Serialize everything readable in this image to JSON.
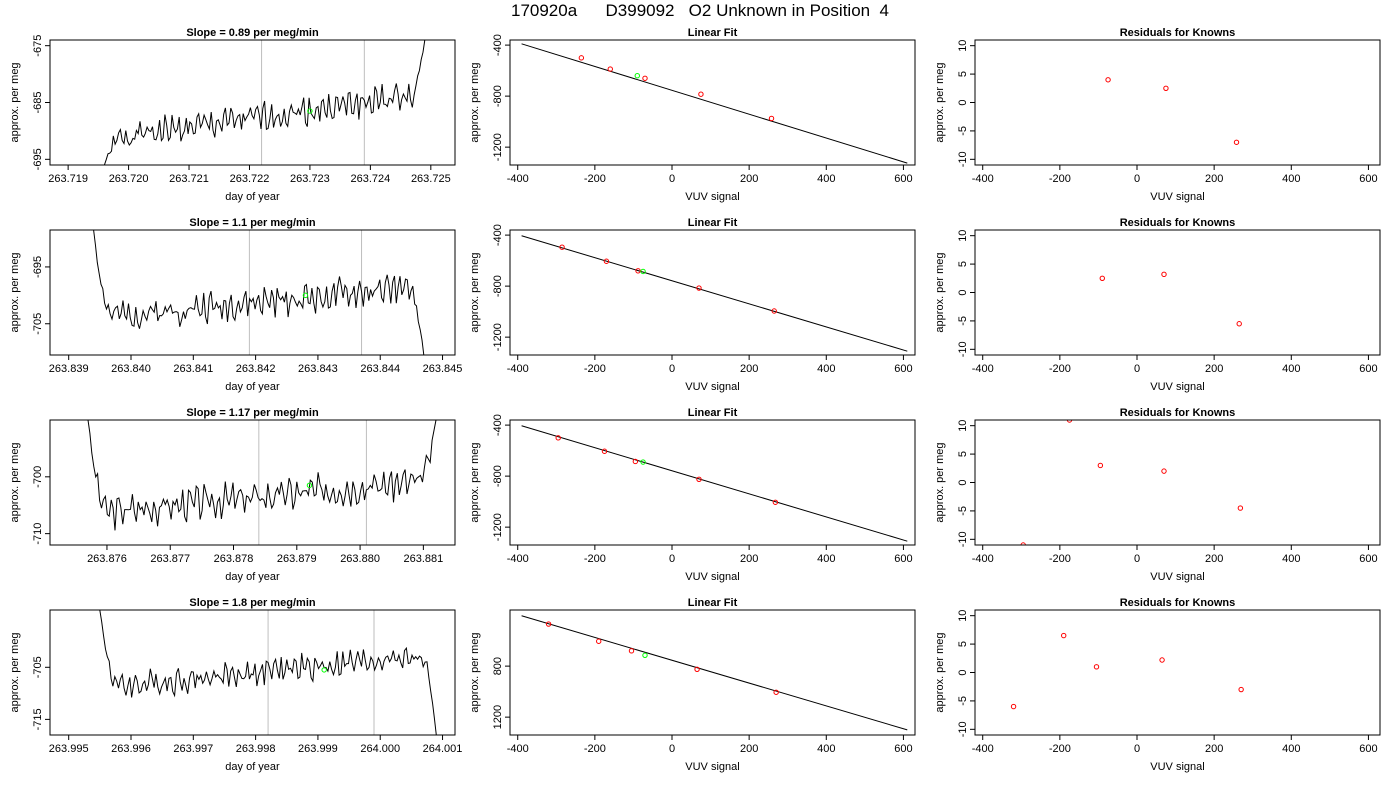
{
  "figure": {
    "title": "170920a      D399092   O2 Unknown in Position  4"
  },
  "colors": {
    "trace": "#000000",
    "frame": "#000000",
    "marker_line": "#bebebe",
    "known_point": "#ff0000",
    "unknown_point": "#00ff00",
    "fit_line": "#000000"
  },
  "chart_data": [
    {
      "type": "line",
      "row": 1,
      "panel": "time-series",
      "title": "Slope =  0.89  per meg/min",
      "xlabel": "day of year",
      "ylabel": "approx. per meg",
      "xlim": [
        263.7187,
        263.7254
      ],
      "ylim": [
        -696,
        -674
      ],
      "x_ticks": [
        "263.719",
        "263.720",
        "263.721",
        "263.722",
        "263.723",
        "263.724",
        "263.725"
      ],
      "y_ticks": [
        "-675",
        "-685",
        "-695"
      ],
      "x_tick_values": [
        263.719,
        263.72,
        263.721,
        263.722,
        263.723,
        263.724,
        263.725
      ],
      "y_tick_values": [
        -675,
        -685,
        -695
      ],
      "vlines": [
        263.7222,
        263.7239
      ],
      "highlight_point": {
        "x": 263.723,
        "y": -686.5
      },
      "trace": {
        "x_start": 263.7196,
        "x_end": 263.7249,
        "base_start": -691.5,
        "base_end": -683.5,
        "amplitude": 2.2,
        "start_y": -696,
        "end_y": -674,
        "seed": 1
      }
    },
    {
      "type": "scatter",
      "row": 1,
      "panel": "linear-fit",
      "title": "Linear Fit",
      "xlabel": "VUV signal",
      "ylabel": "approx. per meg",
      "xlim": [
        -420,
        630
      ],
      "ylim": [
        -1340,
        -360
      ],
      "x_ticks": [
        "-400",
        "-200",
        "0",
        "200",
        "400",
        "600"
      ],
      "x_tick_values": [
        -400,
        -200,
        0,
        200,
        400,
        600
      ],
      "y_ticks": [
        "-400",
        "-800",
        "-1200"
      ],
      "y_tick_values": [
        -400,
        -800,
        -1200
      ],
      "fit_line": {
        "x": [
          -390,
          610
        ],
        "y": [
          -390,
          -1325
        ]
      },
      "knowns": [
        {
          "x": -235,
          "y": -500
        },
        {
          "x": -160,
          "y": -588
        },
        {
          "x": -70,
          "y": -660
        },
        {
          "x": 75,
          "y": -785
        },
        {
          "x": 258,
          "y": -975
        }
      ],
      "unknown": {
        "x": -90,
        "y": -640
      }
    },
    {
      "type": "scatter",
      "row": 1,
      "panel": "residuals",
      "title": "Residuals for Knowns",
      "xlabel": "VUV signal",
      "ylabel": "approx. per meg",
      "xlim": [
        -420,
        630
      ],
      "ylim": [
        -11,
        11
      ],
      "x_ticks": [
        "-400",
        "-200",
        "0",
        "200",
        "400",
        "600"
      ],
      "x_tick_values": [
        -400,
        -200,
        0,
        200,
        400,
        600
      ],
      "y_ticks": [
        "10",
        "5",
        "0",
        "-5",
        "-10"
      ],
      "y_tick_values": [
        10,
        5,
        0,
        -5,
        -10
      ],
      "points": [
        {
          "x": -75,
          "y": 4
        },
        {
          "x": 75,
          "y": 2.5
        },
        {
          "x": 258,
          "y": -7
        }
      ]
    },
    {
      "type": "line",
      "row": 2,
      "panel": "time-series",
      "title": "Slope =  1.1  per meg/min",
      "xlabel": "day of year",
      "ylabel": "approx. per meg",
      "xlim": [
        263.8387,
        263.8452
      ],
      "ylim": [
        -710.5,
        -688.5
      ],
      "x_ticks": [
        "263.839",
        "263.840",
        "263.841",
        "263.842",
        "263.843",
        "263.844",
        "263.845"
      ],
      "y_ticks": [
        "-695",
        "-705"
      ],
      "x_tick_values": [
        263.839,
        263.84,
        263.841,
        263.842,
        263.843,
        263.844,
        263.845
      ],
      "y_tick_values": [
        -695,
        -705
      ],
      "vlines": [
        263.8419,
        263.8437
      ],
      "highlight_point": {
        "x": 263.8428,
        "y": -700
      },
      "trace": {
        "x_start": 263.8394,
        "x_end": 263.8447,
        "base_start": -704,
        "base_end": -698.5,
        "amplitude": 2.3,
        "start_y": -688.5,
        "end_y": -710.5,
        "seed": 2
      }
    },
    {
      "type": "scatter",
      "row": 2,
      "panel": "linear-fit",
      "title": "Linear Fit",
      "xlabel": "VUV signal",
      "ylabel": "approx. per meg",
      "xlim": [
        -420,
        630
      ],
      "ylim": [
        -1340,
        -360
      ],
      "x_ticks": [
        "-400",
        "-200",
        "0",
        "200",
        "400",
        "600"
      ],
      "x_tick_values": [
        -400,
        -200,
        0,
        200,
        400,
        600
      ],
      "y_ticks": [
        "-400",
        "-800",
        "-1200"
      ],
      "y_tick_values": [
        -400,
        -800,
        -1200
      ],
      "fit_line": {
        "x": [
          -390,
          610
        ],
        "y": [
          -405,
          -1310
        ]
      },
      "knowns": [
        {
          "x": -285,
          "y": -495
        },
        {
          "x": -170,
          "y": -605
        },
        {
          "x": -88,
          "y": -680
        },
        {
          "x": 70,
          "y": -815
        },
        {
          "x": 265,
          "y": -995
        }
      ],
      "unknown": {
        "x": -75,
        "y": -685
      }
    },
    {
      "type": "scatter",
      "row": 2,
      "panel": "residuals",
      "title": "Residuals for Knowns",
      "xlabel": "VUV signal",
      "ylabel": "approx. per meg",
      "xlim": [
        -420,
        630
      ],
      "ylim": [
        -11,
        11
      ],
      "x_ticks": [
        "-400",
        "-200",
        "0",
        "200",
        "400",
        "600"
      ],
      "x_tick_values": [
        -400,
        -200,
        0,
        200,
        400,
        600
      ],
      "y_ticks": [
        "10",
        "5",
        "0",
        "-5",
        "-10"
      ],
      "y_tick_values": [
        10,
        5,
        0,
        -5,
        -10
      ],
      "points": [
        {
          "x": -90,
          "y": 2.5
        },
        {
          "x": 70,
          "y": 3.2
        },
        {
          "x": 265,
          "y": -5.5
        }
      ]
    },
    {
      "type": "line",
      "row": 3,
      "panel": "time-series",
      "title": "Slope =  1.17  per meg/min",
      "xlabel": "day of year",
      "ylabel": "approx. per meg",
      "xlim": [
        263.8751,
        263.8815
      ],
      "ylim": [
        -712,
        -690
      ],
      "x_ticks": [
        "263.876",
        "263.877",
        "263.878",
        "263.879",
        "263.880",
        "263.881"
      ],
      "y_ticks": [
        "-700",
        "-710"
      ],
      "x_tick_values": [
        263.876,
        263.877,
        263.878,
        263.879,
        263.88,
        263.881
      ],
      "y_tick_values": [
        -700,
        -710
      ],
      "vlines": [
        263.8784,
        263.8801
      ],
      "highlight_point": {
        "x": 263.8792,
        "y": -701.5
      },
      "trace": {
        "x_start": 263.8757,
        "x_end": 263.8812,
        "base_start": -706.5,
        "base_end": -700.5,
        "amplitude": 2.5,
        "start_y": -690,
        "end_y": -690,
        "seed": 3
      }
    },
    {
      "type": "scatter",
      "row": 3,
      "panel": "linear-fit",
      "title": "Linear Fit",
      "xlabel": "VUV signal",
      "ylabel": "approx. per meg",
      "xlim": [
        -420,
        630
      ],
      "ylim": [
        -1340,
        -360
      ],
      "x_ticks": [
        "-400",
        "-200",
        "0",
        "200",
        "400",
        "600"
      ],
      "x_tick_values": [
        -400,
        -200,
        0,
        200,
        400,
        600
      ],
      "y_ticks": [
        "-400",
        "-800",
        "-1200"
      ],
      "y_tick_values": [
        -400,
        -800,
        -1200
      ],
      "fit_line": {
        "x": [
          -390,
          610
        ],
        "y": [
          -405,
          -1310
        ]
      },
      "knowns": [
        {
          "x": -295,
          "y": -500
        },
        {
          "x": -175,
          "y": -605
        },
        {
          "x": -95,
          "y": -685
        },
        {
          "x": 70,
          "y": -825
        },
        {
          "x": 268,
          "y": -1005
        }
      ],
      "unknown": {
        "x": -75,
        "y": -690
      }
    },
    {
      "type": "scatter",
      "row": 3,
      "panel": "residuals",
      "title": "Residuals for Knowns",
      "xlabel": "VUV signal",
      "ylabel": "approx. per meg",
      "xlim": [
        -420,
        630
      ],
      "ylim": [
        -11,
        11
      ],
      "x_ticks": [
        "-400",
        "-200",
        "0",
        "200",
        "400",
        "600"
      ],
      "x_tick_values": [
        -400,
        -200,
        0,
        200,
        400,
        600
      ],
      "y_ticks": [
        "10",
        "5",
        "0",
        "-5",
        "-10"
      ],
      "y_tick_values": [
        10,
        5,
        0,
        -5,
        -10
      ],
      "points": [
        {
          "x": -175,
          "y": 11
        },
        {
          "x": -95,
          "y": 3
        },
        {
          "x": 70,
          "y": 2
        },
        {
          "x": 268,
          "y": -4.5
        },
        {
          "x": -295,
          "y": -11
        }
      ]
    },
    {
      "type": "line",
      "row": 4,
      "panel": "time-series",
      "title": "Slope =  1.8  per meg/min",
      "xlabel": "day of year",
      "ylabel": "approx. per meg",
      "xlim": [
        263.9947,
        264.0012
      ],
      "ylim": [
        -718,
        -694
      ],
      "x_ticks": [
        "263.995",
        "263.996",
        "263.997",
        "263.998",
        "263.999",
        "264.000",
        "264.001"
      ],
      "y_ticks": [
        "-705",
        "-715"
      ],
      "x_tick_values": [
        263.995,
        263.996,
        263.997,
        263.998,
        263.999,
        264.0,
        264.001
      ],
      "y_tick_values": [
        -705,
        -715
      ],
      "vlines": [
        263.9982,
        263.9999
      ],
      "highlight_point": {
        "x": 263.9991,
        "y": -705.5
      },
      "trace": {
        "x_start": 263.9955,
        "x_end": 264.0009,
        "base_start": -709,
        "base_end": -702.5,
        "amplitude": 2.2,
        "start_y": -694,
        "end_y": -718,
        "seed": 4
      }
    },
    {
      "type": "scatter",
      "row": 4,
      "panel": "linear-fit",
      "title": "Linear Fit",
      "xlabel": "VUV signal",
      "ylabel": "approx. per meg",
      "xlim": [
        -420,
        630
      ],
      "ylim": [
        -1340,
        -360
      ],
      "x_ticks": [
        "-400",
        "-200",
        "0",
        "200",
        "400",
        "600"
      ],
      "x_tick_values": [
        -400,
        -200,
        0,
        200,
        400,
        600
      ],
      "y_ticks": [
        "800",
        "1200"
      ],
      "y_tick_values": [
        -800,
        -1200
      ],
      "fit_line": {
        "x": [
          -390,
          610
        ],
        "y": [
          -405,
          -1300
        ]
      },
      "knowns": [
        {
          "x": -320,
          "y": -470
        },
        {
          "x": -190,
          "y": -605
        },
        {
          "x": -105,
          "y": -680
        },
        {
          "x": 65,
          "y": -825
        },
        {
          "x": 270,
          "y": -1005
        }
      ],
      "unknown": {
        "x": -70,
        "y": -715
      }
    },
    {
      "type": "scatter",
      "row": 4,
      "panel": "residuals",
      "title": "Residuals for Knowns",
      "xlabel": "VUV signal",
      "ylabel": "approx. per meg",
      "xlim": [
        -420,
        630
      ],
      "ylim": [
        -11,
        11
      ],
      "x_ticks": [
        "-400",
        "-200",
        "0",
        "200",
        "400",
        "600"
      ],
      "x_tick_values": [
        -400,
        -200,
        0,
        200,
        400,
        600
      ],
      "y_ticks": [
        "10",
        "5",
        "0",
        "-5",
        "-10"
      ],
      "y_tick_values": [
        10,
        5,
        0,
        -5,
        -10
      ],
      "points": [
        {
          "x": -320,
          "y": -6
        },
        {
          "x": -190,
          "y": 6.5
        },
        {
          "x": -105,
          "y": 1
        },
        {
          "x": 65,
          "y": 2.2
        },
        {
          "x": 270,
          "y": -3
        }
      ]
    }
  ]
}
